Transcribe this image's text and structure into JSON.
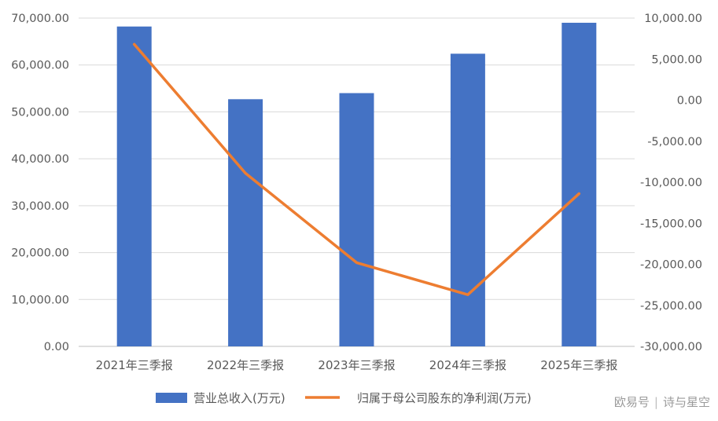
{
  "chart_data": {
    "type": "bar",
    "categories": [
      "2021年三季报",
      "2022年三季报",
      "2023年三季报",
      "2024年三季报",
      "2025年三季报"
    ],
    "series": [
      {
        "name": "营业总收入(万元)",
        "type": "bar",
        "axis": "left",
        "color": "#4472C4",
        "values": [
          68200,
          52700,
          54000,
          62400,
          69000
        ]
      },
      {
        "name": "归属于母公司股东的净利润(万元)",
        "type": "line",
        "axis": "right",
        "color": "#ED7D31",
        "values": [
          6800,
          -8900,
          -19800,
          -23700,
          -11400
        ]
      }
    ],
    "y_left": {
      "ylim": [
        0,
        70000
      ],
      "ticks": [
        "0.00",
        "10,000.00",
        "20,000.00",
        "30,000.00",
        "40,000.00",
        "50,000.00",
        "60,000.00",
        "70,000.00"
      ],
      "tick_values": [
        0,
        10000,
        20000,
        30000,
        40000,
        50000,
        60000,
        70000
      ]
    },
    "y_right": {
      "ylim": [
        -30000,
        10000
      ],
      "ticks": [
        "-30,000.00",
        "-25,000.00",
        "-20,000.00",
        "-15,000.00",
        "-10,000.00",
        "-5,000.00",
        "0.00",
        "5,000.00",
        "10,000.00"
      ],
      "tick_values": [
        -30000,
        -25000,
        -20000,
        -15000,
        -10000,
        -5000,
        0,
        5000,
        10000
      ]
    },
    "grid": true,
    "legend_position": "bottom"
  },
  "watermark": {
    "left": "欧易号",
    "right": "诗与星空"
  }
}
